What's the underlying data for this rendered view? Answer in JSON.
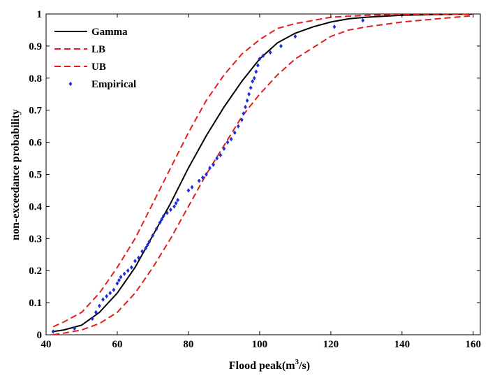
{
  "chart_data": {
    "type": "line",
    "xlabel": "Flood peak(m",
    "xlabel_sup": "3",
    "xlabel_tail": "/s)",
    "ylabel": "non-exceedance probability",
    "xlim": [
      40,
      162
    ],
    "ylim": [
      0,
      1
    ],
    "x_ticks": [
      40,
      60,
      80,
      100,
      120,
      140,
      160
    ],
    "y_ticks": [
      0,
      0.1,
      0.2,
      0.3,
      0.4,
      0.5,
      0.6,
      0.7,
      0.8,
      0.9,
      1
    ],
    "y_tick_labels": [
      "0",
      "0.1",
      "0.2",
      "0.3",
      "0.4",
      "0.5",
      "0.6",
      "0.7",
      "0.8",
      "0.9",
      "1"
    ],
    "grid": false,
    "legend_position": "top-left",
    "series": [
      {
        "name": "Gamma",
        "style": "solid",
        "color": "#000000",
        "x": [
          42,
          45,
          50,
          55,
          60,
          65,
          70,
          75,
          80,
          85,
          90,
          95,
          100,
          105,
          110,
          115,
          120,
          125,
          130,
          140,
          150,
          160
        ],
        "y": [
          0.01,
          0.015,
          0.03,
          0.07,
          0.13,
          0.21,
          0.31,
          0.41,
          0.52,
          0.62,
          0.71,
          0.79,
          0.86,
          0.91,
          0.94,
          0.96,
          0.975,
          0.985,
          0.99,
          0.996,
          0.998,
          1.0
        ]
      },
      {
        "name": "LB",
        "style": "dashed",
        "color": "#e0201b",
        "x": [
          42,
          45,
          50,
          55,
          60,
          65,
          70,
          75,
          80,
          85,
          90,
          95,
          100,
          105,
          110,
          115,
          120,
          125,
          130,
          140,
          150,
          160
        ],
        "y": [
          0.025,
          0.04,
          0.07,
          0.13,
          0.21,
          0.3,
          0.41,
          0.52,
          0.63,
          0.73,
          0.81,
          0.875,
          0.92,
          0.955,
          0.97,
          0.98,
          0.99,
          0.993,
          0.996,
          0.998,
          0.999,
          1.0
        ]
      },
      {
        "name": "UB",
        "style": "dashed",
        "color": "#e0201b",
        "x": [
          42,
          45,
          50,
          55,
          60,
          65,
          70,
          75,
          80,
          85,
          90,
          95,
          100,
          105,
          110,
          115,
          120,
          125,
          130,
          140,
          150,
          160
        ],
        "y": [
          0.0,
          0.005,
          0.015,
          0.035,
          0.07,
          0.13,
          0.21,
          0.3,
          0.4,
          0.5,
          0.59,
          0.68,
          0.75,
          0.81,
          0.86,
          0.895,
          0.93,
          0.95,
          0.96,
          0.975,
          0.985,
          0.995
        ]
      },
      {
        "name": "Empirical",
        "style": "markers",
        "marker": "diamond",
        "color": "#1f2fd6",
        "x": [
          42,
          48,
          53,
          54,
          55,
          56,
          57,
          58,
          59,
          60,
          60.5,
          61,
          62,
          63,
          64,
          65,
          66,
          67,
          68,
          68.5,
          69,
          70,
          71,
          72,
          72.5,
          73,
          74,
          75,
          76,
          76.5,
          77,
          80,
          81,
          83,
          84,
          85,
          86,
          87,
          88,
          89,
          90,
          91,
          92,
          93,
          94,
          95,
          95.5,
          96,
          96.5,
          97,
          97.5,
          98,
          98.5,
          99,
          99.5,
          100,
          101,
          103,
          106,
          110,
          121,
          129
        ],
        "y": [
          0.01,
          0.02,
          0.05,
          0.07,
          0.09,
          0.11,
          0.12,
          0.13,
          0.14,
          0.16,
          0.17,
          0.18,
          0.19,
          0.2,
          0.21,
          0.23,
          0.24,
          0.26,
          0.27,
          0.28,
          0.29,
          0.31,
          0.33,
          0.35,
          0.36,
          0.37,
          0.38,
          0.39,
          0.4,
          0.41,
          0.42,
          0.45,
          0.46,
          0.48,
          0.49,
          0.5,
          0.52,
          0.53,
          0.55,
          0.56,
          0.58,
          0.6,
          0.61,
          0.63,
          0.65,
          0.67,
          0.69,
          0.71,
          0.73,
          0.75,
          0.77,
          0.79,
          0.8,
          0.82,
          0.84,
          0.86,
          0.87,
          0.88,
          0.9,
          0.93,
          0.96,
          0.98
        ]
      }
    ]
  }
}
